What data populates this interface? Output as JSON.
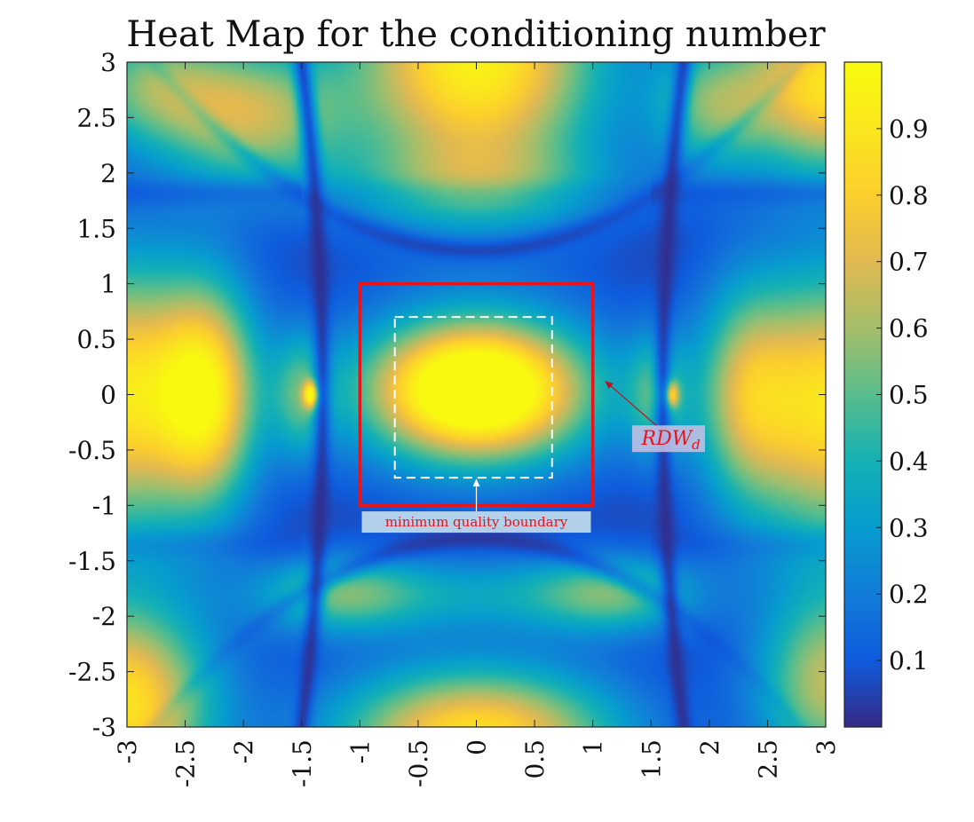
{
  "chart_data": {
    "type": "heatmap",
    "title": "Heat Map for the conditioning number",
    "xlabel": "",
    "ylabel": "",
    "xlim": [
      -3,
      3
    ],
    "ylim": [
      -3,
      3
    ],
    "x_ticks": [
      {
        "value": -3,
        "label": "-3"
      },
      {
        "value": -2.5,
        "label": "-2.5"
      },
      {
        "value": -2,
        "label": "-2"
      },
      {
        "value": -1.5,
        "label": "-1.5"
      },
      {
        "value": -1,
        "label": "-1"
      },
      {
        "value": -0.5,
        "label": "-0.5"
      },
      {
        "value": 0,
        "label": "0"
      },
      {
        "value": 0.5,
        "label": "0.5"
      },
      {
        "value": 1,
        "label": "1"
      },
      {
        "value": 1.5,
        "label": "1.5"
      },
      {
        "value": 2,
        "label": "2"
      },
      {
        "value": 2.5,
        "label": "2.5"
      },
      {
        "value": 3,
        "label": "3"
      }
    ],
    "y_ticks": [
      {
        "value": 3,
        "label": "3"
      },
      {
        "value": 2.5,
        "label": "2.5"
      },
      {
        "value": 2,
        "label": "2"
      },
      {
        "value": 1.5,
        "label": "1.5"
      },
      {
        "value": 1,
        "label": "1"
      },
      {
        "value": 0.5,
        "label": "0.5"
      },
      {
        "value": 0,
        "label": "0"
      },
      {
        "value": -0.5,
        "label": "-0.5"
      },
      {
        "value": -1,
        "label": "-1"
      },
      {
        "value": -1.5,
        "label": "-1.5"
      },
      {
        "value": -2,
        "label": "-2"
      },
      {
        "value": -2.5,
        "label": "-2.5"
      },
      {
        "value": -3,
        "label": "-3"
      }
    ],
    "colorbar": {
      "colormap": "parula",
      "range": [
        0,
        1
      ],
      "ticks": [
        {
          "value": 0.1,
          "label": "0.1"
        },
        {
          "value": 0.2,
          "label": "0.2"
        },
        {
          "value": 0.3,
          "label": "0.3"
        },
        {
          "value": 0.4,
          "label": "0.4"
        },
        {
          "value": 0.5,
          "label": "0.5"
        },
        {
          "value": 0.6,
          "label": "0.6"
        },
        {
          "value": 0.7,
          "label": "0.7"
        },
        {
          "value": 0.8,
          "label": "0.8"
        },
        {
          "value": 0.9,
          "label": "0.9"
        }
      ]
    },
    "regions": [
      {
        "name": "RDW_d",
        "shape": "rectangle",
        "x": [
          -1,
          1
        ],
        "y": [
          -1,
          1
        ],
        "color": "#e8141b",
        "style": "solid"
      },
      {
        "name": "minimum quality boundary",
        "shape": "rectangle",
        "x": [
          -0.7,
          0.65
        ],
        "y": [
          -0.75,
          0.7
        ],
        "color": "#ffffff",
        "style": "dashed"
      }
    ],
    "annotations": [
      {
        "label_main": "RDW",
        "label_sub": "d",
        "text_color": "#e8141b",
        "arrow_to": [
          1.08,
          0.15
        ],
        "text_at": [
          1.65,
          -0.35
        ],
        "arrow_color": "#c0121a"
      },
      {
        "label": "minimum quality boundary",
        "text_color": "#e8141b",
        "arrow_to": [
          0,
          -0.75
        ],
        "text_at": [
          0,
          -1.15
        ],
        "arrow_color": "#ffffff"
      }
    ],
    "field_description": {
      "bright_regions": [
        {
          "center": [
            0,
            0
          ],
          "peak": 0.97
        },
        {
          "center": [
            0,
            2.8
          ],
          "peak": 0.95
        },
        {
          "center": [
            0,
            -2.9
          ],
          "peak": 0.85
        },
        {
          "center": [
            -3,
            0
          ],
          "peak": 0.85
        },
        {
          "center": [
            3,
            0
          ],
          "peak": 0.85
        },
        {
          "center": [
            -3,
            -2.8
          ],
          "peak": 0.85
        },
        {
          "center": [
            3,
            2.8
          ],
          "peak": 0.85
        },
        {
          "center": [
            -1.4,
            0
          ],
          "peak": 0.85
        },
        {
          "center": [
            1.65,
            0
          ],
          "peak": 0.85
        }
      ],
      "dark_lines": [
        "x ≈ -1.3 and x ≈ 1.6 (near-vertical minima)",
        "y ≈ ±1.35 horizontal arcs around center",
        "y ≈ ±1.8 outer bands"
      ]
    }
  }
}
